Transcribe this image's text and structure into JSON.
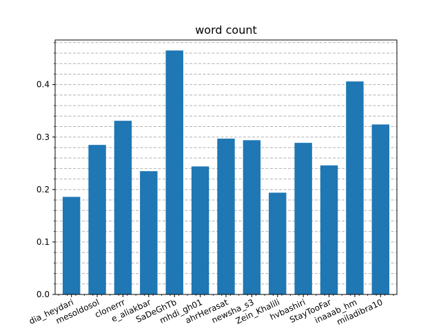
{
  "chart_data": {
    "type": "bar",
    "title": "word count",
    "xlabel": "",
    "ylabel": "",
    "categories": [
      "dia_heydari",
      "mesoldosol",
      "clonerrr",
      "e_aliakbar",
      "SaDeGhTb",
      "mhdi_gh01",
      "ahrHerasat",
      "newsha_s3",
      "Zein_Khalili",
      "hvbashiri",
      "StayTooFar",
      "inaaab_hm",
      "miladibra10"
    ],
    "values": [
      0.186,
      0.285,
      0.331,
      0.235,
      0.465,
      0.244,
      0.297,
      0.294,
      0.194,
      0.289,
      0.246,
      0.406,
      0.324
    ],
    "ylim": [
      0,
      0.485
    ],
    "yticks": [
      0.0,
      0.1,
      0.2,
      0.3,
      0.4
    ],
    "ytick_labels": [
      "0.0",
      "0.1",
      "0.2",
      "0.3",
      "0.4"
    ],
    "grid": "y-minor-dashed",
    "bar_color": "#1f77b4"
  }
}
